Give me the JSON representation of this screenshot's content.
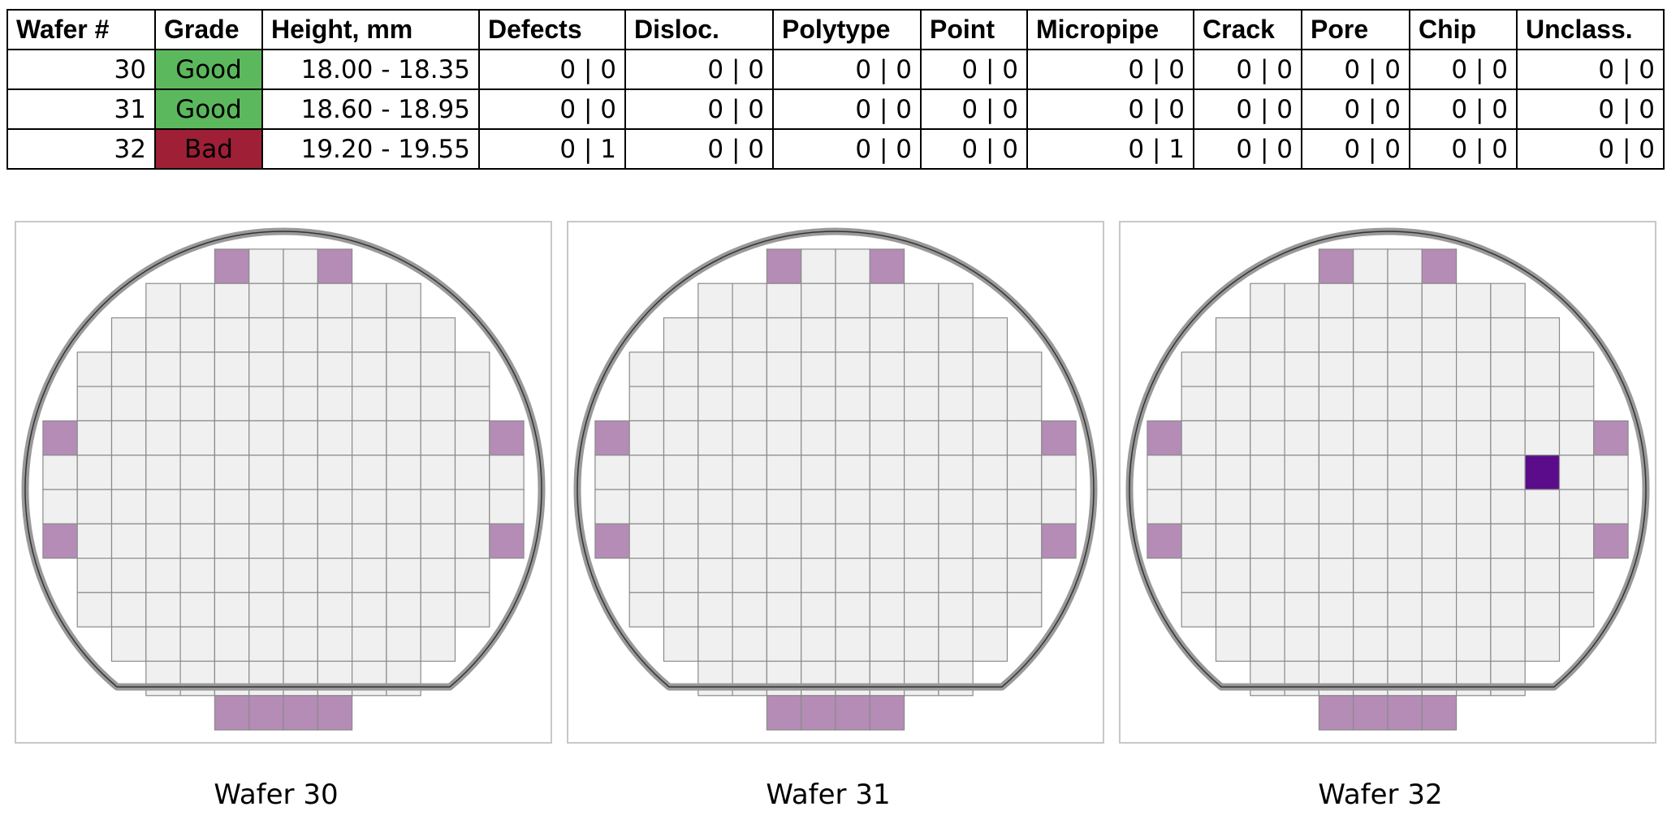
{
  "table": {
    "headers": [
      "Wafer #",
      "Grade",
      "Height, mm",
      "Defects",
      "Disloc.",
      "Polytype",
      "Point",
      "Micropipe",
      "Crack",
      "Pore",
      "Chip",
      "Unclass."
    ],
    "rows": [
      [
        "30",
        "Good",
        "18.00 - 18.35",
        "0 | 0",
        "0 | 0",
        "0 | 0",
        "0 | 0",
        "0 | 0",
        "0 | 0",
        "0 | 0",
        "0 | 0",
        "0 | 0"
      ],
      [
        "31",
        "Good",
        "18.60 - 18.95",
        "0 | 0",
        "0 | 0",
        "0 | 0",
        "0 | 0",
        "0 | 0",
        "0 | 0",
        "0 | 0",
        "0 | 0",
        "0 | 0"
      ],
      [
        "32",
        "Bad",
        "19.20 - 19.55",
        "0 | 1",
        "0 | 0",
        "0 | 0",
        "0 | 0",
        "0 | 1",
        "0 | 0",
        "0 | 0",
        "0 | 0",
        "0 | 0"
      ]
    ]
  },
  "colors": {
    "grade_good": "#5cb85c",
    "grade_bad": "#9e1f36",
    "die_normal": "#f0f0f0",
    "die_edge": "#b48cb6",
    "die_defect": "#5b0c8a",
    "wafer_ring": "#999999"
  },
  "chart_data": {
    "type": "heatmap",
    "grid_size": [
      14,
      14
    ],
    "row_counts": [
      4,
      8,
      10,
      12,
      12,
      14,
      14,
      14,
      14,
      12,
      12,
      10,
      8,
      4
    ],
    "edge_dies": [
      [
        0,
        5
      ],
      [
        0,
        8
      ],
      [
        5,
        0
      ],
      [
        5,
        13
      ],
      [
        8,
        0
      ],
      [
        8,
        13
      ],
      [
        13,
        5
      ],
      [
        13,
        6
      ],
      [
        13,
        7
      ],
      [
        13,
        8
      ]
    ],
    "wafers": [
      {
        "label": "Wafer 30",
        "defect_dies": []
      },
      {
        "label": "Wafer 31",
        "defect_dies": []
      },
      {
        "label": "Wafer 32",
        "defect_dies": [
          [
            6,
            11
          ]
        ]
      }
    ]
  }
}
